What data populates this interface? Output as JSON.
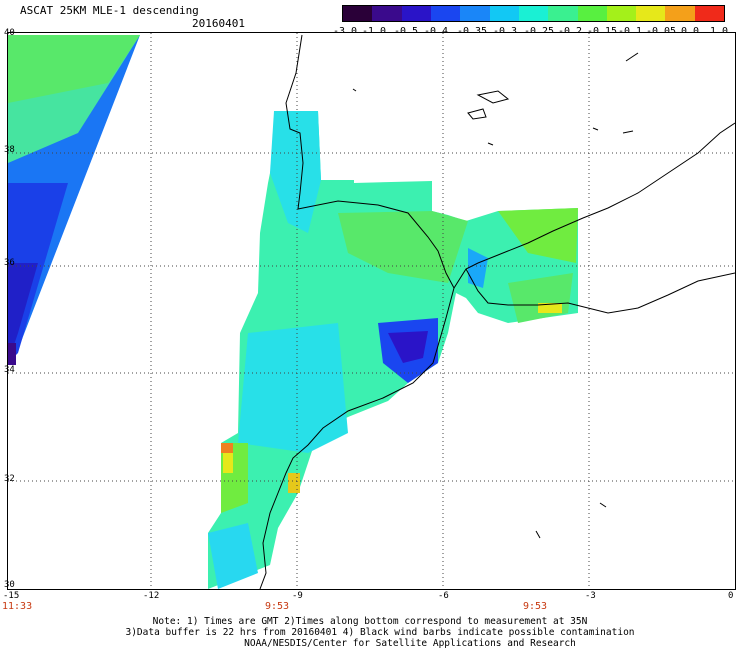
{
  "header": {
    "title": "ASCAT 25KM MLE-1 descending",
    "date": "20160401"
  },
  "colorbar": {
    "labels": [
      "-3.0",
      "-1.0",
      "-0.5",
      "-0.4",
      "-0.35",
      "-0.3",
      "-0.25",
      "-0.2",
      "-0.15",
      "-0.1",
      "-0.05",
      "0.0",
      "1.0"
    ],
    "colors": [
      "#2a0038",
      "#3a0a8c",
      "#2a14c8",
      "#1a46f0",
      "#1a86f8",
      "#12c8f4",
      "#1af0d4",
      "#3af090",
      "#58f040",
      "#a4f01a",
      "#e6e81a",
      "#f4a01a",
      "#f02a1a"
    ]
  },
  "map": {
    "lat_labels": [
      "40",
      "38",
      "36",
      "34",
      "32",
      "30"
    ],
    "lon_labels": [
      "-15",
      "-12",
      "-9",
      "-6",
      "-3",
      "0"
    ],
    "time_labels": [
      "11:33",
      "9:53",
      "9:53"
    ],
    "colors": {
      "land": "#ffffff",
      "coast": "#000000",
      "grid": "#444444",
      "time": "#c83a12"
    }
  },
  "footer": {
    "line1": "Note: 1) Times are GMT 2)Times along bottom correspond to measurement at 35N",
    "line2": "3)Data buffer is 22 hrs from 20160401 4) Black wind barbs indicate possible contamination",
    "line3": "NOAA/NESDIS/Center for Satellite Applications and Research"
  }
}
